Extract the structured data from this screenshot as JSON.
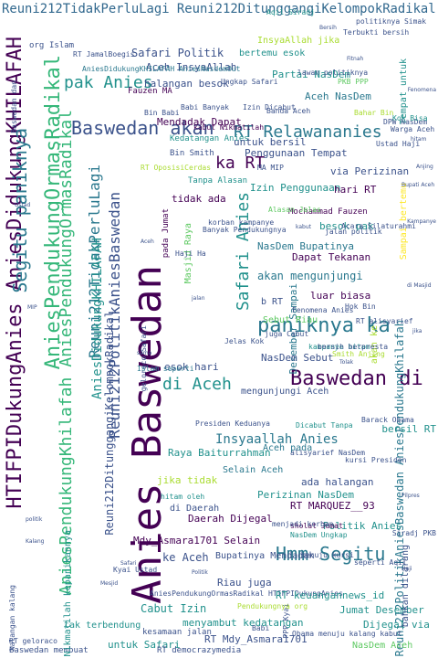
{
  "palette": {
    "dark_purple": "#440154",
    "indigo": "#3b528b",
    "teal": "#21918c",
    "sea_green": "#2a788e",
    "green": "#5ec962",
    "lime": "#aadc32",
    "yellow": "#fde725",
    "navy": "#31688e",
    "mint": "#35b779",
    "dark_teal": "#1f9e89"
  },
  "words": [
    "Reuni212TidakPerluLagi Reuni212DitunggangiKelompokRadikal",
    "HTIFPIDukungAnies AniesDidukungKHILAFAH",
    "AniesPendukungOrmasRadikal",
    "Segitu paniknya",
    "AniesPendukungKhilafah AniesPendukungOrmasRadikal",
    "Reuni212PolitikAniesBaswedan",
    "Reuni212TidakPerluLagi",
    "AniesDidukungKHILAFAH",
    "Anies Baswedan",
    "Baswedan akan",
    "pak Anies",
    "RT Relawananies",
    "ka RT",
    "Safari Anies",
    "paniknya ka",
    "Baswedan di",
    "di Aceh",
    "Hmm Segitu",
    "Insyaallah Anies",
    "Reuni212PolitikAniesBaswedan AniesPendukungKhilafah",
    "Reuni212DitunggangiKelompokRadikal",
    "Safari Politik",
    "Aceh InsyaAllah",
    "halangan besok",
    "Mendadak Dapat",
    "Kedatangan Anies",
    "Penggunaan Tempat",
    "via Perizinan",
    "Izin Penggunaan",
    "akan mengunjungi",
    "Dapat Tekanan",
    "NasDem Bupatinya",
    "Desember Sampai",
    "luar biasa",
    "Sebut Riau",
    "Aceh pada",
    "Raya Baiturrahman",
    "Selain Aceh",
    "Perizinan NasDem",
    "RT MARQUEZ__93",
    "Politik Anies",
    "Mdy_Asmara1701 Selain",
    "Daerah Dijegal",
    "ke Aceh",
    "Bupatinya Mendadak",
    "Riau juga",
    "Cabut Izin",
    "AniesPendukungOrmasRadikal HTIFPIDukungAnies",
    "RT keuangannews_id",
    "Jumat Desember",
    "menyambut kedatangan",
    "Dijegal via",
    "RT Mdy_Asmara1701",
    "untuk Safari",
    "Baswedan membuat",
    "NasDem Aceh",
    "Partai NasDem",
    "Aceh NasDem",
    "bertemu esok",
    "InsyaAllah jika",
    "bersil RT",
    "esok hari",
    "NasDem Sebut",
    "mengunjungi Aceh",
    "Masjid Raya",
    "Tanpa Alasan",
    "Babi Banyak",
    "Bin Smith",
    "ada halangan",
    "jika tidak",
    "hitam oleh",
    "di Daerah",
    "kesamaan jalan",
    "RT democrazymedia",
    "Obama menuju kalang kabut",
    "Tempat untuk",
    "AniesDidukungKHILAFAH AniesNasdemOut",
    "RT JamalBoegis",
    "Sampai bertemu",
    "akan ke",
    "Fenomena Anies",
    "RT alisyarief",
    "RT OposisiCerdas",
    "tidak ada",
    "untuk bersil",
    "kabut Nikmatilah",
    "pada Jumat",
    "hari RT",
    "besok pak",
    "b RT",
    "jalan politik",
    "Ungkap Safari",
    "Izin Dicabut",
    "DPW NasDem",
    "Warga Aceh",
    "Kok Bisa",
    "Barack Obama",
    "Bin Babi",
    "tak terbendung",
    "geloraco Safari",
    "Islam seperti",
    "kalangan kalang",
    "Nikmatilah kepanikannya",
    "Baswedan dan",
    "Mochammad Fauzen",
    "Fauzen MA",
    "alisyarief NasDem",
    "kampanye hitam",
    "Dicabut Tanpa",
    "Presiden Keduanya",
    "bersih berpresta",
    "Smith Anjing",
    "juga Cabut",
    "Acara Silaturahmi",
    "MA MIP",
    "korban kampanye",
    "Alasan Jelas",
    "Banyak Pendukungnya",
    "kursi Presiden",
    "seperti Aqil",
    "Siradj PKB",
    "sholat Jumat",
    "menjadi korban",
    "NasDem Ungkap",
    "menuju kursi",
    "PPP Kyai",
    "Kyai Ustad",
    "RT geloraco",
    "Jelas Kok",
    "Bahar Bin",
    "Aqil Siradj",
    "politiknya Simak",
    "Terbukti bersih",
    "Ustad Haji",
    "Haji Ha",
    "Hok Bin",
    "Pendukungnya org",
    "Islam",
    "org",
    "Ustad",
    "Kalang",
    "politik",
    "MIP",
    "Aceh",
    "jalan",
    "Safari",
    "sama",
    "Mesjid",
    "Politik",
    "kabut",
    "Bersih",
    "Fitnah",
    "Haji",
    "di Masjid",
    "bahkan dilarang",
    "Tolak",
    "Kampanye",
    "Fenomena",
    "hitam",
    "Bupati Aceh",
    "lawan politiknya",
    "Banda Aceh",
    "PKB PPP",
    "Babi",
    "Anjing",
    "jika",
    "Pilpres"
  ]
}
